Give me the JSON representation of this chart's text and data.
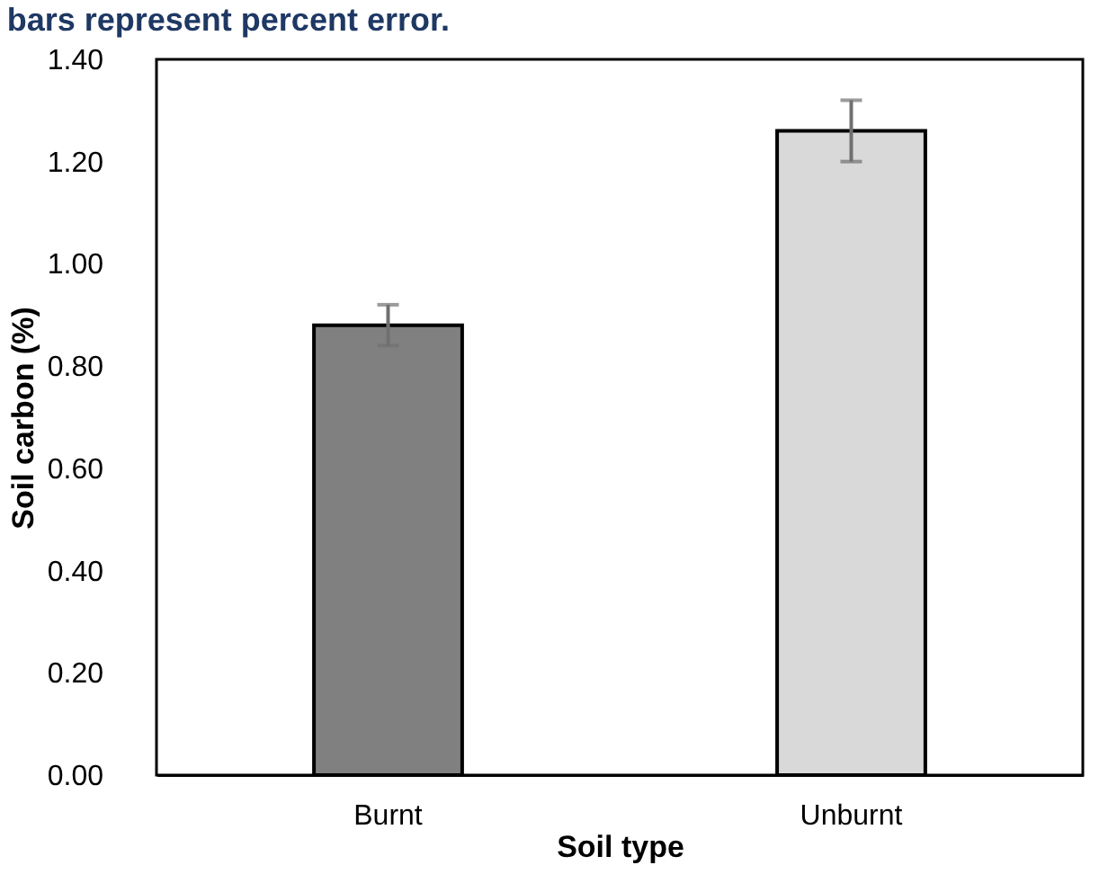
{
  "chart_data": {
    "type": "bar",
    "title": "bars represent percent error.",
    "xlabel": "Soil type",
    "ylabel": "Soil carbon (%)",
    "categories": [
      "Burnt",
      "Unburnt"
    ],
    "values": [
      0.88,
      1.26
    ],
    "errors": [
      0.04,
      0.06
    ],
    "colors": [
      "#808080",
      "#d9d9d9"
    ],
    "ylim": [
      0,
      1.4
    ],
    "yticks": [
      {
        "value": 0,
        "label": "0.00"
      },
      {
        "value": 0.2,
        "label": "0.20"
      },
      {
        "value": 0.4,
        "label": "0.40"
      },
      {
        "value": 0.6,
        "label": "0.60"
      },
      {
        "value": 0.8,
        "label": "0.80"
      },
      {
        "value": 1.0,
        "label": "1.00"
      },
      {
        "value": 1.2,
        "label": "1.20"
      },
      {
        "value": 1.4,
        "label": "1.40"
      }
    ],
    "grid": false
  }
}
